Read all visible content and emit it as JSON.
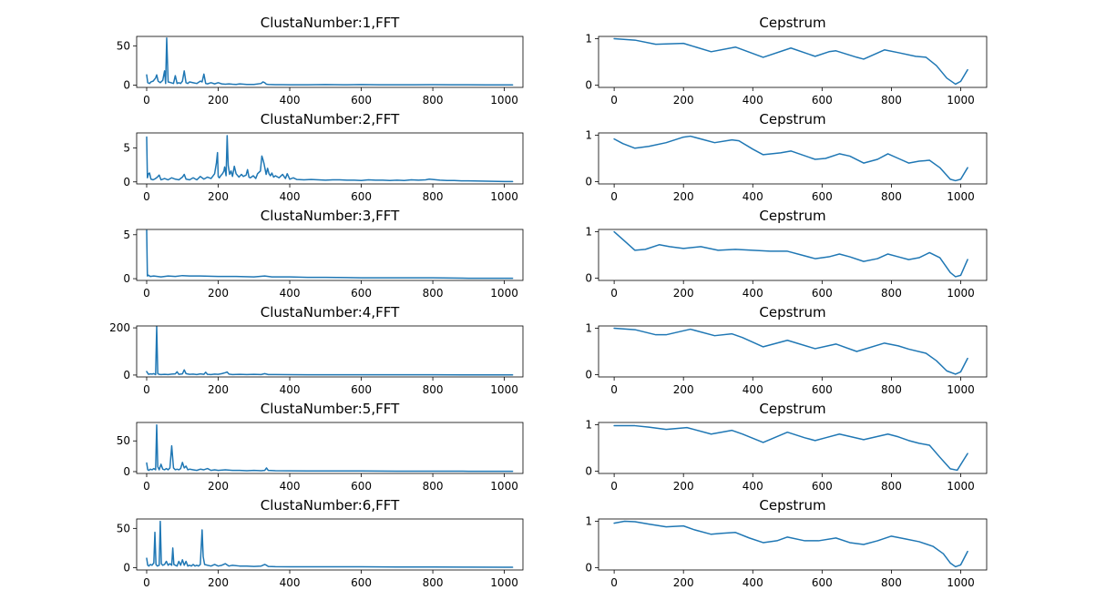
{
  "figure": {
    "series_color": "#1f77b4"
  },
  "chart_data": [
    {
      "type": "line",
      "title": "ClustaNumber:1,FFT",
      "xlim": [
        -28,
        1052
      ],
      "ylim": [
        -3,
        62
      ],
      "xticks": [
        0,
        200,
        400,
        600,
        800,
        1000
      ],
      "yticks": [
        0,
        50
      ],
      "x": [
        0,
        3,
        8,
        12,
        18,
        25,
        28,
        32,
        38,
        45,
        50,
        53,
        56,
        60,
        68,
        75,
        80,
        85,
        90,
        95,
        100,
        105,
        110,
        115,
        120,
        130,
        140,
        150,
        155,
        160,
        165,
        170,
        180,
        190,
        200,
        210,
        220,
        230,
        240,
        250,
        260,
        280,
        300,
        320,
        325,
        330,
        335,
        340,
        360,
        380,
        400,
        450,
        500,
        550,
        600,
        650,
        700,
        750,
        800,
        850,
        900,
        950,
        1000,
        1023
      ],
      "y": [
        13,
        3,
        2,
        4,
        5,
        9,
        13,
        5,
        3,
        6,
        18,
        2,
        60,
        4,
        3,
        2,
        12,
        2,
        3,
        2,
        5,
        18,
        3,
        2,
        4,
        3,
        2,
        5,
        4,
        14,
        2,
        1.5,
        3,
        1.5,
        3,
        1.5,
        1,
        1.5,
        1,
        0.8,
        1.5,
        0.8,
        0.8,
        2,
        4,
        3,
        1,
        0.8,
        0.5,
        0.5,
        0.4,
        0.3,
        0.6,
        0.3,
        0.6,
        0.3,
        0.3,
        0.3,
        0.5,
        0.3,
        0.3,
        0.2,
        0.2,
        0.2
      ]
    },
    {
      "type": "line",
      "title": "Cepstrum",
      "xlim": [
        -45,
        1075
      ],
      "ylim": [
        -0.05,
        1.05
      ],
      "xticks": [
        0,
        200,
        400,
        600,
        800,
        1000
      ],
      "yticks": [
        0,
        1
      ],
      "x": [
        0,
        60,
        120,
        200,
        280,
        350,
        430,
        510,
        580,
        620,
        640,
        700,
        720,
        780,
        820,
        870,
        900,
        930,
        960,
        985,
        1000,
        1020
      ],
      "y": [
        1.0,
        0.97,
        0.88,
        0.9,
        0.72,
        0.82,
        0.6,
        0.8,
        0.62,
        0.72,
        0.74,
        0.6,
        0.56,
        0.76,
        0.7,
        0.62,
        0.6,
        0.42,
        0.15,
        0.02,
        0.08,
        0.33
      ]
    },
    {
      "type": "line",
      "title": "ClustaNumber:2,FFT",
      "xlim": [
        -28,
        1052
      ],
      "ylim": [
        -0.3,
        7.2
      ],
      "xticks": [
        0,
        200,
        400,
        600,
        800,
        1000
      ],
      "yticks": [
        0,
        5
      ],
      "x": [
        0,
        2,
        5,
        8,
        12,
        18,
        25,
        30,
        35,
        40,
        50,
        60,
        70,
        80,
        90,
        100,
        105,
        110,
        120,
        130,
        140,
        150,
        160,
        170,
        180,
        190,
        195,
        198,
        200,
        203,
        207,
        212,
        216,
        218,
        222,
        225,
        228,
        232,
        236,
        240,
        245,
        250,
        258,
        265,
        270,
        278,
        282,
        286,
        290,
        298,
        305,
        310,
        318,
        322,
        325,
        328,
        331,
        334,
        338,
        342,
        346,
        350,
        355,
        360,
        370,
        380,
        388,
        393,
        400,
        410,
        420,
        440,
        460,
        480,
        500,
        520,
        540,
        560,
        580,
        600,
        620,
        640,
        660,
        680,
        700,
        720,
        740,
        760,
        780,
        790,
        800,
        810,
        820,
        840,
        860,
        880,
        900,
        950,
        1000,
        1023
      ],
      "y": [
        6.6,
        0.6,
        1.2,
        1.3,
        0.4,
        0.3,
        0.5,
        0.7,
        1.0,
        0.3,
        0.5,
        0.3,
        0.6,
        0.4,
        0.3,
        0.7,
        1.1,
        0.4,
        0.3,
        0.6,
        0.3,
        0.8,
        0.4,
        0.7,
        0.5,
        1.2,
        2.8,
        4.3,
        0.8,
        0.6,
        0.9,
        1.2,
        1.6,
        2.2,
        0.9,
        6.8,
        2.4,
        1.1,
        1.6,
        0.8,
        2.3,
        1.2,
        0.7,
        1.1,
        0.8,
        1.0,
        1.8,
        0.7,
        0.6,
        0.9,
        0.5,
        1.2,
        1.6,
        3.8,
        3.3,
        2.7,
        1.9,
        1.1,
        2.0,
        1.2,
        0.9,
        1.3,
        0.7,
        0.9,
        0.6,
        1.1,
        0.5,
        1.2,
        0.4,
        0.6,
        0.35,
        0.3,
        0.35,
        0.3,
        0.25,
        0.3,
        0.3,
        0.25,
        0.25,
        0.2,
        0.3,
        0.25,
        0.25,
        0.2,
        0.25,
        0.2,
        0.3,
        0.25,
        0.3,
        0.4,
        0.35,
        0.3,
        0.25,
        0.2,
        0.2,
        0.15,
        0.15,
        0.1,
        0.05,
        0.05
      ]
    },
    {
      "type": "line",
      "title": "Cepstrum",
      "xlim": [
        -45,
        1075
      ],
      "ylim": [
        -0.05,
        1.05
      ],
      "xticks": [
        0,
        200,
        400,
        600,
        800,
        1000
      ],
      "yticks": [
        0,
        1
      ],
      "x": [
        0,
        25,
        60,
        100,
        150,
        200,
        220,
        260,
        290,
        340,
        360,
        400,
        430,
        480,
        510,
        580,
        610,
        650,
        680,
        720,
        760,
        790,
        820,
        850,
        880,
        910,
        940,
        970,
        985,
        1000,
        1020
      ],
      "y": [
        0.92,
        0.82,
        0.72,
        0.76,
        0.84,
        0.96,
        0.98,
        0.9,
        0.84,
        0.9,
        0.88,
        0.7,
        0.58,
        0.62,
        0.66,
        0.48,
        0.5,
        0.6,
        0.55,
        0.4,
        0.48,
        0.6,
        0.5,
        0.4,
        0.44,
        0.46,
        0.3,
        0.05,
        0.02,
        0.05,
        0.3
      ]
    },
    {
      "type": "line",
      "title": "ClustaNumber:3,FFT",
      "xlim": [
        -28,
        1052
      ],
      "ylim": [
        -0.2,
        5.6
      ],
      "xticks": [
        0,
        200,
        400,
        600,
        800,
        1000
      ],
      "yticks": [
        0,
        5
      ],
      "x": [
        0,
        2,
        5,
        10,
        20,
        40,
        60,
        80,
        100,
        120,
        150,
        200,
        250,
        300,
        330,
        350,
        400,
        450,
        500,
        600,
        700,
        800,
        900,
        1000,
        1023
      ],
      "y": [
        5.5,
        0.3,
        0.4,
        0.25,
        0.3,
        0.2,
        0.3,
        0.25,
        0.35,
        0.3,
        0.3,
        0.25,
        0.25,
        0.2,
        0.3,
        0.2,
        0.2,
        0.15,
        0.15,
        0.1,
        0.1,
        0.1,
        0.05,
        0.05,
        0.05
      ]
    },
    {
      "type": "line",
      "title": "Cepstrum",
      "xlim": [
        -45,
        1075
      ],
      "ylim": [
        -0.05,
        1.05
      ],
      "xticks": [
        0,
        200,
        400,
        600,
        800,
        1000
      ],
      "yticks": [
        0,
        1
      ],
      "x": [
        0,
        30,
        60,
        90,
        130,
        160,
        200,
        250,
        300,
        350,
        400,
        450,
        500,
        540,
        580,
        620,
        650,
        680,
        720,
        760,
        790,
        820,
        850,
        880,
        910,
        940,
        970,
        985,
        1000,
        1020
      ],
      "y": [
        1.0,
        0.8,
        0.6,
        0.62,
        0.72,
        0.68,
        0.64,
        0.68,
        0.6,
        0.62,
        0.6,
        0.58,
        0.58,
        0.5,
        0.42,
        0.46,
        0.52,
        0.46,
        0.36,
        0.42,
        0.52,
        0.46,
        0.4,
        0.44,
        0.55,
        0.44,
        0.12,
        0.03,
        0.06,
        0.4
      ]
    },
    {
      "type": "line",
      "title": "ClustaNumber:4,FFT",
      "xlim": [
        -28,
        1052
      ],
      "ylim": [
        -8,
        208
      ],
      "xticks": [
        0,
        200,
        400,
        600,
        800,
        1000
      ],
      "yticks": [
        0,
        200
      ],
      "x": [
        0,
        5,
        10,
        15,
        20,
        25,
        28,
        31,
        35,
        40,
        50,
        60,
        70,
        80,
        85,
        90,
        100,
        105,
        110,
        120,
        130,
        140,
        150,
        160,
        165,
        170,
        180,
        190,
        200,
        210,
        220,
        225,
        230,
        240,
        260,
        280,
        300,
        320,
        330,
        340,
        360,
        400,
        450,
        500,
        600,
        700,
        800,
        900,
        1000,
        1023
      ],
      "y": [
        15,
        3,
        5,
        4,
        6,
        2,
        205,
        6,
        3,
        2,
        3,
        2,
        4,
        5,
        14,
        3,
        5,
        22,
        6,
        3,
        4,
        2,
        5,
        3,
        12,
        3,
        2,
        4,
        3,
        6,
        10,
        13,
        4,
        2,
        3,
        2,
        3,
        2,
        6,
        2,
        2,
        1.5,
        1,
        1,
        1,
        1,
        1,
        0.8,
        0.6,
        0.6
      ]
    },
    {
      "type": "line",
      "title": "Cepstrum",
      "xlim": [
        -45,
        1075
      ],
      "ylim": [
        -0.05,
        1.05
      ],
      "xticks": [
        0,
        200,
        400,
        600,
        800,
        1000
      ],
      "yticks": [
        0,
        1
      ],
      "x": [
        0,
        60,
        120,
        150,
        220,
        290,
        340,
        370,
        430,
        500,
        580,
        640,
        700,
        780,
        820,
        850,
        900,
        930,
        960,
        985,
        1000,
        1020
      ],
      "y": [
        1.0,
        0.97,
        0.86,
        0.86,
        0.98,
        0.84,
        0.88,
        0.8,
        0.6,
        0.74,
        0.56,
        0.66,
        0.5,
        0.68,
        0.62,
        0.55,
        0.46,
        0.3,
        0.08,
        0.01,
        0.06,
        0.35
      ]
    },
    {
      "type": "line",
      "title": "ClustaNumber:5,FFT",
      "xlim": [
        -28,
        1052
      ],
      "ylim": [
        -3,
        80
      ],
      "xticks": [
        0,
        200,
        400,
        600,
        800,
        1000
      ],
      "yticks": [
        0,
        50
      ],
      "x": [
        0,
        3,
        6,
        10,
        15,
        20,
        25,
        28,
        31,
        35,
        40,
        45,
        50,
        55,
        60,
        65,
        70,
        75,
        80,
        85,
        90,
        95,
        100,
        105,
        110,
        115,
        120,
        130,
        140,
        150,
        160,
        170,
        180,
        190,
        200,
        220,
        240,
        260,
        280,
        300,
        320,
        330,
        335,
        340,
        360,
        400,
        450,
        500,
        550,
        600,
        700,
        800,
        900,
        1000,
        1023
      ],
      "y": [
        14,
        3,
        2,
        4,
        3,
        5,
        3,
        76,
        8,
        3,
        12,
        4,
        3,
        5,
        3,
        6,
        42,
        6,
        3,
        4,
        3,
        5,
        15,
        6,
        9,
        3,
        4,
        3,
        2,
        4,
        3,
        5,
        2,
        3,
        2,
        3,
        2,
        2,
        1.5,
        2,
        1.5,
        2,
        6,
        2,
        1.5,
        1.2,
        1,
        1,
        1,
        1,
        0.8,
        0.8,
        0.6,
        0.5,
        0.5
      ]
    },
    {
      "type": "line",
      "title": "Cepstrum",
      "xlim": [
        -45,
        1075
      ],
      "ylim": [
        -0.05,
        1.05
      ],
      "xticks": [
        0,
        200,
        400,
        600,
        800,
        1000
      ],
      "yticks": [
        0,
        1
      ],
      "x": [
        0,
        60,
        100,
        150,
        210,
        280,
        340,
        370,
        430,
        500,
        550,
        580,
        610,
        650,
        720,
        790,
        820,
        850,
        880,
        910,
        940,
        970,
        990,
        1020
      ],
      "y": [
        0.98,
        0.98,
        0.95,
        0.9,
        0.94,
        0.8,
        0.88,
        0.8,
        0.62,
        0.84,
        0.72,
        0.66,
        0.72,
        0.8,
        0.68,
        0.8,
        0.74,
        0.66,
        0.6,
        0.56,
        0.3,
        0.05,
        0.02,
        0.38
      ]
    },
    {
      "type": "line",
      "title": "ClustaNumber:6,FFT",
      "xlim": [
        -28,
        1052
      ],
      "ylim": [
        -3,
        62
      ],
      "xticks": [
        0,
        200,
        400,
        600,
        800,
        1000
      ],
      "yticks": [
        0,
        50
      ],
      "x": [
        0,
        3,
        6,
        10,
        15,
        20,
        23,
        26,
        30,
        35,
        38,
        41,
        45,
        50,
        55,
        60,
        65,
        70,
        73,
        76,
        80,
        85,
        90,
        95,
        100,
        105,
        110,
        115,
        120,
        125,
        130,
        135,
        140,
        145,
        150,
        155,
        158,
        162,
        170,
        180,
        190,
        200,
        210,
        220,
        230,
        240,
        260,
        280,
        300,
        320,
        330,
        335,
        340,
        360,
        400,
        450,
        500,
        550,
        600,
        700,
        800,
        900,
        1000,
        1023
      ],
      "y": [
        12,
        3,
        2,
        4,
        3,
        6,
        45,
        4,
        2,
        3,
        59,
        5,
        3,
        4,
        8,
        3,
        5,
        3,
        25,
        4,
        3,
        2,
        8,
        3,
        10,
        3,
        8,
        2,
        3,
        2,
        4,
        2,
        3,
        2,
        4,
        48,
        14,
        4,
        3,
        2,
        4,
        2,
        3,
        5,
        2,
        3,
        2,
        2,
        1.5,
        2,
        4,
        3,
        1.5,
        1.2,
        1,
        1,
        1,
        1,
        1,
        0.8,
        0.8,
        0.6,
        0.5,
        0.5
      ]
    },
    {
      "type": "line",
      "title": "Cepstrum",
      "xlim": [
        -45,
        1075
      ],
      "ylim": [
        -0.05,
        1.05
      ],
      "xticks": [
        0,
        200,
        400,
        600,
        800,
        1000
      ],
      "yticks": [
        0,
        1
      ],
      "x": [
        0,
        30,
        60,
        100,
        150,
        200,
        230,
        280,
        310,
        350,
        390,
        430,
        470,
        500,
        550,
        590,
        640,
        680,
        720,
        760,
        800,
        840,
        880,
        920,
        950,
        970,
        985,
        1000,
        1020
      ],
      "y": [
        0.96,
        1.0,
        0.99,
        0.94,
        0.88,
        0.9,
        0.82,
        0.72,
        0.74,
        0.76,
        0.64,
        0.54,
        0.58,
        0.66,
        0.58,
        0.58,
        0.64,
        0.54,
        0.5,
        0.58,
        0.68,
        0.62,
        0.56,
        0.46,
        0.3,
        0.1,
        0.02,
        0.06,
        0.35
      ]
    }
  ]
}
